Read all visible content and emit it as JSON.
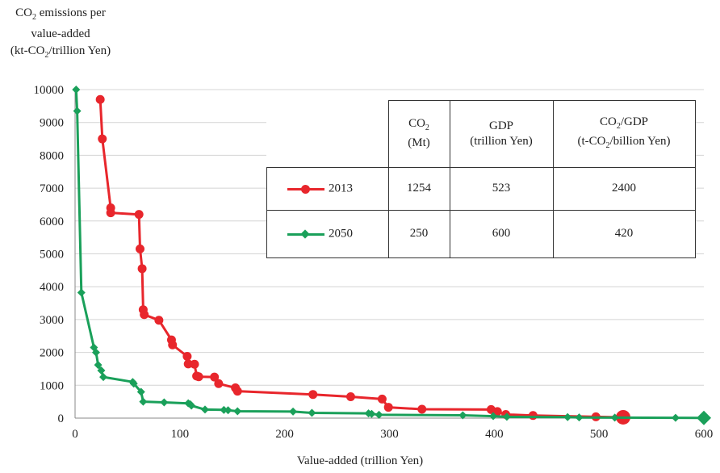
{
  "chart_data": {
    "type": "line",
    "ylabel_lines": [
      "CO₂ emissions per",
      "value-added",
      "(kt-CO₂/trillion Yen)"
    ],
    "xlabel": "Value-added (trillion Yen)",
    "xlim": [
      0,
      600
    ],
    "ylim": [
      0,
      10000
    ],
    "xticks": [
      0,
      100,
      200,
      300,
      400,
      500,
      600
    ],
    "yticks": [
      0,
      1000,
      2000,
      3000,
      4000,
      5000,
      6000,
      7000,
      8000,
      9000,
      10000
    ],
    "grid": "horizontal",
    "series": [
      {
        "name": "2013",
        "color": "#e8262c",
        "marker": "circle",
        "points": [
          [
            24,
            9700
          ],
          [
            26,
            8500
          ],
          [
            34,
            6400
          ],
          [
            34,
            6250
          ],
          [
            61,
            6200
          ],
          [
            62,
            5150
          ],
          [
            64,
            4550
          ],
          [
            65,
            3300
          ],
          [
            66,
            3150
          ],
          [
            80,
            2980
          ],
          [
            92,
            2380
          ],
          [
            93,
            2230
          ],
          [
            107,
            1880
          ],
          [
            108,
            1650
          ],
          [
            114,
            1640
          ],
          [
            116,
            1280
          ],
          [
            118,
            1260
          ],
          [
            133,
            1250
          ],
          [
            137,
            1050
          ],
          [
            153,
            920
          ],
          [
            155,
            820
          ],
          [
            227,
            720
          ],
          [
            263,
            650
          ],
          [
            293,
            580
          ],
          [
            299,
            330
          ],
          [
            331,
            270
          ],
          [
            397,
            260
          ],
          [
            403,
            200
          ],
          [
            411,
            110
          ],
          [
            437,
            80
          ],
          [
            497,
            40
          ],
          [
            523,
            25
          ]
        ]
      },
      {
        "name": "2050",
        "color": "#1aa05a",
        "marker": "diamond",
        "points": [
          [
            1,
            10000
          ],
          [
            2,
            9350
          ],
          [
            6,
            3820
          ],
          [
            18,
            2150
          ],
          [
            20,
            2000
          ],
          [
            22,
            1620
          ],
          [
            25,
            1450
          ],
          [
            27,
            1250
          ],
          [
            55,
            1100
          ],
          [
            56,
            1050
          ],
          [
            63,
            800
          ],
          [
            65,
            500
          ],
          [
            85,
            480
          ],
          [
            108,
            450
          ],
          [
            110,
            420
          ],
          [
            111,
            380
          ],
          [
            124,
            260
          ],
          [
            142,
            250
          ],
          [
            146,
            240
          ],
          [
            155,
            210
          ],
          [
            208,
            200
          ],
          [
            226,
            160
          ],
          [
            280,
            145
          ],
          [
            283,
            130
          ],
          [
            290,
            100
          ],
          [
            370,
            85
          ],
          [
            399,
            60
          ],
          [
            412,
            40
          ],
          [
            470,
            30
          ],
          [
            481,
            20
          ],
          [
            515,
            15
          ],
          [
            573,
            10
          ],
          [
            600,
            5
          ]
        ]
      }
    ]
  },
  "table": {
    "headers": [
      "CO₂ (Mt)",
      "GDP (trillion Yen)",
      "CO₂/GDP (t-CO₂/billion Yen)"
    ],
    "rows": [
      {
        "label": "2013",
        "co2": "1254",
        "gdp": "523",
        "ratio": "2400"
      },
      {
        "label": "2050",
        "co2": "250",
        "gdp": "600",
        "ratio": "420"
      }
    ]
  }
}
